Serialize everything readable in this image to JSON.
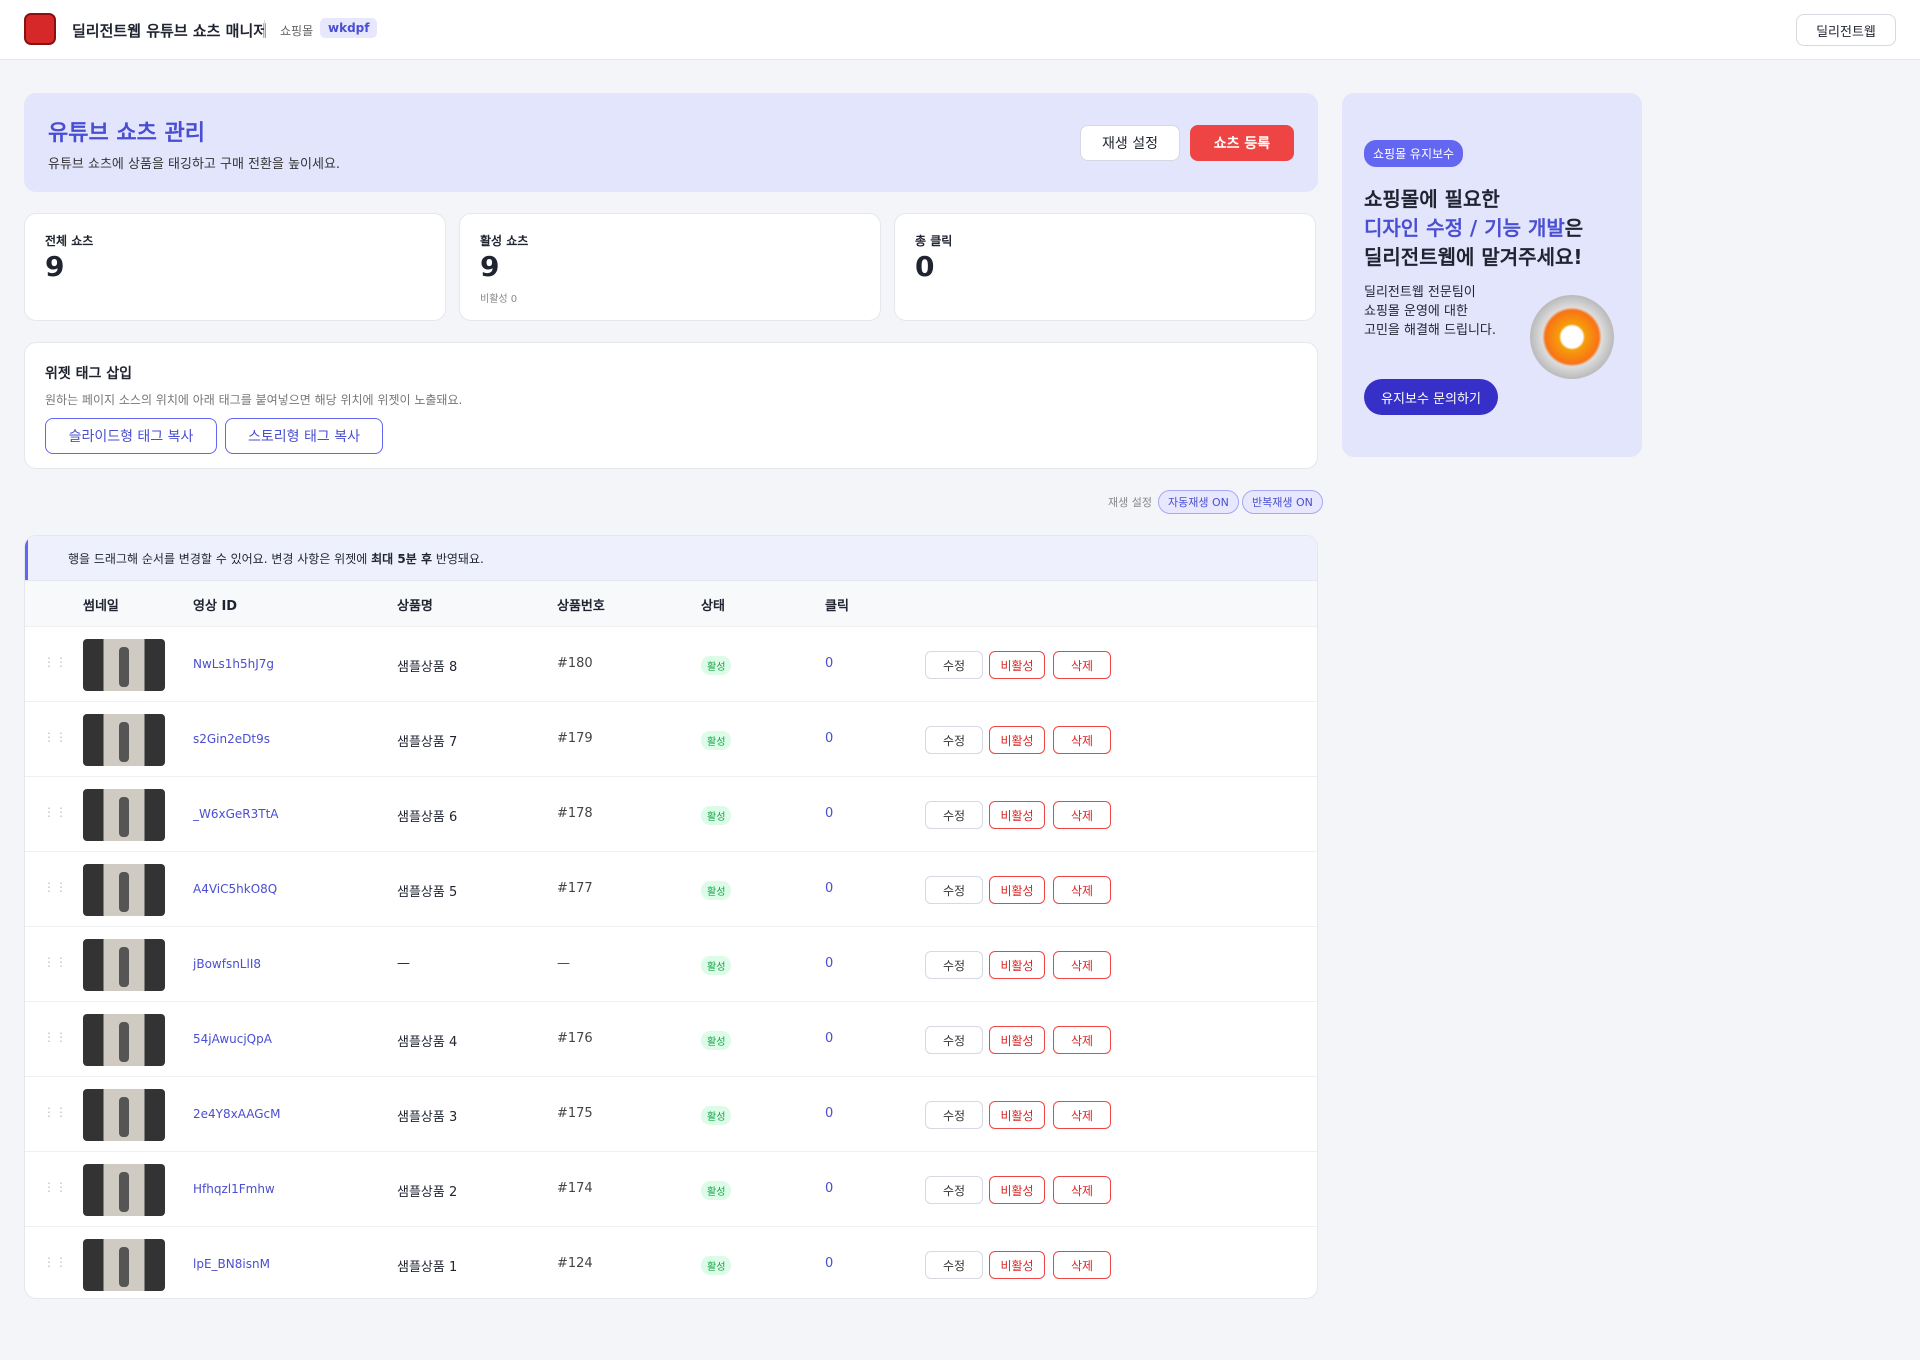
{
  "header": {
    "title": "딜리전트웹 유튜브 쇼츠 매니저",
    "mall_label": "쇼핑몰",
    "mall_id": "wkdpf",
    "home_button": "딜리전트웹"
  },
  "hero": {
    "title": "유튜브 쇼츠 관리",
    "subtitle": "유튜브 쇼츠에 상품을 태깅하고 구매 전환을 높이세요.",
    "settings_button": "재생 설정",
    "register_button": "쇼츠 등록"
  },
  "stats": [
    {
      "label": "전체 쇼츠",
      "value": 9
    },
    {
      "label": "활성 쇼츠",
      "value": 9,
      "note": "비활성 0"
    },
    {
      "label": "총 클릭",
      "value": 0
    }
  ],
  "widget": {
    "title": "위젯 태그 삽입",
    "description": "원하는 페이지 소스의 위치에 아래 태그를 붙여넣으면 해당 위치에 위젯이 노출돼요.",
    "buttons": [
      "슬라이드형 태그 복사",
      "스토리형 태그 복사"
    ]
  },
  "playback": {
    "label": "재생 설정",
    "chips": [
      "자동재생 ON",
      "반복재생 ON"
    ]
  },
  "notice": {
    "before": "행을 드래그해 순서를 변경할 수 있어요. 변경 사항은 위젯에",
    "bold": "최대 5분 후",
    "after": "반영돼요."
  },
  "table": {
    "columns": [
      "썸네일",
      "영상 ID",
      "상품명",
      "상품번호",
      "상태",
      "클릭"
    ],
    "rows": [
      [
        "NwLs1h5hJ7g",
        "샘플상품 8",
        "#180",
        "활성",
        0
      ],
      [
        "s2Gin2eDt9s",
        "샘플상품 7",
        "#179",
        "활성",
        0
      ],
      [
        "_W6xGeR3TtA",
        "샘플상품 6",
        "#178",
        "활성",
        0
      ],
      [
        "A4ViC5hkO8Q",
        "샘플상품 5",
        "#177",
        "활성",
        0
      ],
      [
        "jBowfsnLlI8",
        "—",
        "—",
        "활성",
        0
      ],
      [
        "54jAwucjQpA",
        "샘플상품 4",
        "#176",
        "활성",
        0
      ],
      [
        "2e4Y8xAAGcM",
        "샘플상품 3",
        "#175",
        "활성",
        0
      ],
      [
        "Hfhqzl1Fmhw",
        "샘플상품 2",
        "#174",
        "활성",
        0
      ],
      [
        "lpE_BN8isnM",
        "샘플상품 1",
        "#124",
        "활성",
        0
      ]
    ],
    "actions": [
      "수정",
      "비활성",
      "삭제"
    ]
  },
  "promo": {
    "badge": "쇼핑몰 유지보수",
    "line1": "쇼핑몰에 필요한",
    "highlight": "디자인 수정 / 기능 개발",
    "suffix": "은",
    "line3": "딜리전트웹에 맡겨주세요!",
    "body": [
      "딜리전트웹 전문팀이",
      "쇼핑몰 운영에 대한",
      "고민을 해결해 드립니다."
    ],
    "button": "유지보수 문의하기"
  }
}
